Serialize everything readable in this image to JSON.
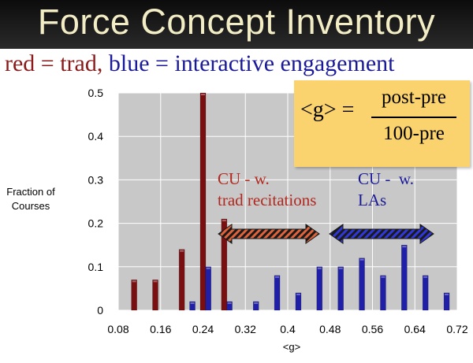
{
  "title": "Force Concept Inventory",
  "legend": {
    "red_label": "red = trad,",
    "blue_label": "blue = interactive engagement"
  },
  "formula": {
    "lhs": "<g> =",
    "numerator": "post-pre",
    "denominator": "100-pre"
  },
  "annotations": {
    "red_text": "CU - w.\ntrad recitations",
    "blue_text": "CU -  w.\nLAs"
  },
  "colors": {
    "trad": "#7a0f12",
    "interactive": "#1f1fa8",
    "plot_bg": "#c8c8c8",
    "grid": "#ffffff"
  },
  "chart_data": {
    "type": "bar",
    "title": "Force Concept Inventory",
    "xlabel": "<g>",
    "ylabel": "Fraction of Courses",
    "xlim": [
      0.08,
      0.72
    ],
    "ylim": [
      0,
      0.5
    ],
    "x_ticks": [
      "0.08",
      "0.16",
      "0.24",
      "0.32",
      "0.4",
      "0.48",
      "0.56",
      "0.64",
      "0.72"
    ],
    "y_ticks": [
      "0",
      "0.1",
      "0.2",
      "0.3",
      "0.4",
      "0.5"
    ],
    "grid": true,
    "series": [
      {
        "key": "trad",
        "color": "#7a0f12",
        "points": [
          [
            0.11,
            0.07
          ],
          [
            0.15,
            0.07
          ],
          [
            0.2,
            0.14
          ],
          [
            0.24,
            0.5
          ],
          [
            0.28,
            0.21
          ]
        ]
      },
      {
        "key": "interactive",
        "color": "#1f1fa8",
        "points": [
          [
            0.22,
            0.02
          ],
          [
            0.25,
            0.1
          ],
          [
            0.29,
            0.02
          ],
          [
            0.34,
            0.02
          ],
          [
            0.38,
            0.08
          ],
          [
            0.42,
            0.04
          ],
          [
            0.46,
            0.1
          ],
          [
            0.5,
            0.1
          ],
          [
            0.54,
            0.12
          ],
          [
            0.58,
            0.08
          ],
          [
            0.62,
            0.15
          ],
          [
            0.66,
            0.08
          ],
          [
            0.7,
            0.04
          ]
        ]
      }
    ]
  }
}
